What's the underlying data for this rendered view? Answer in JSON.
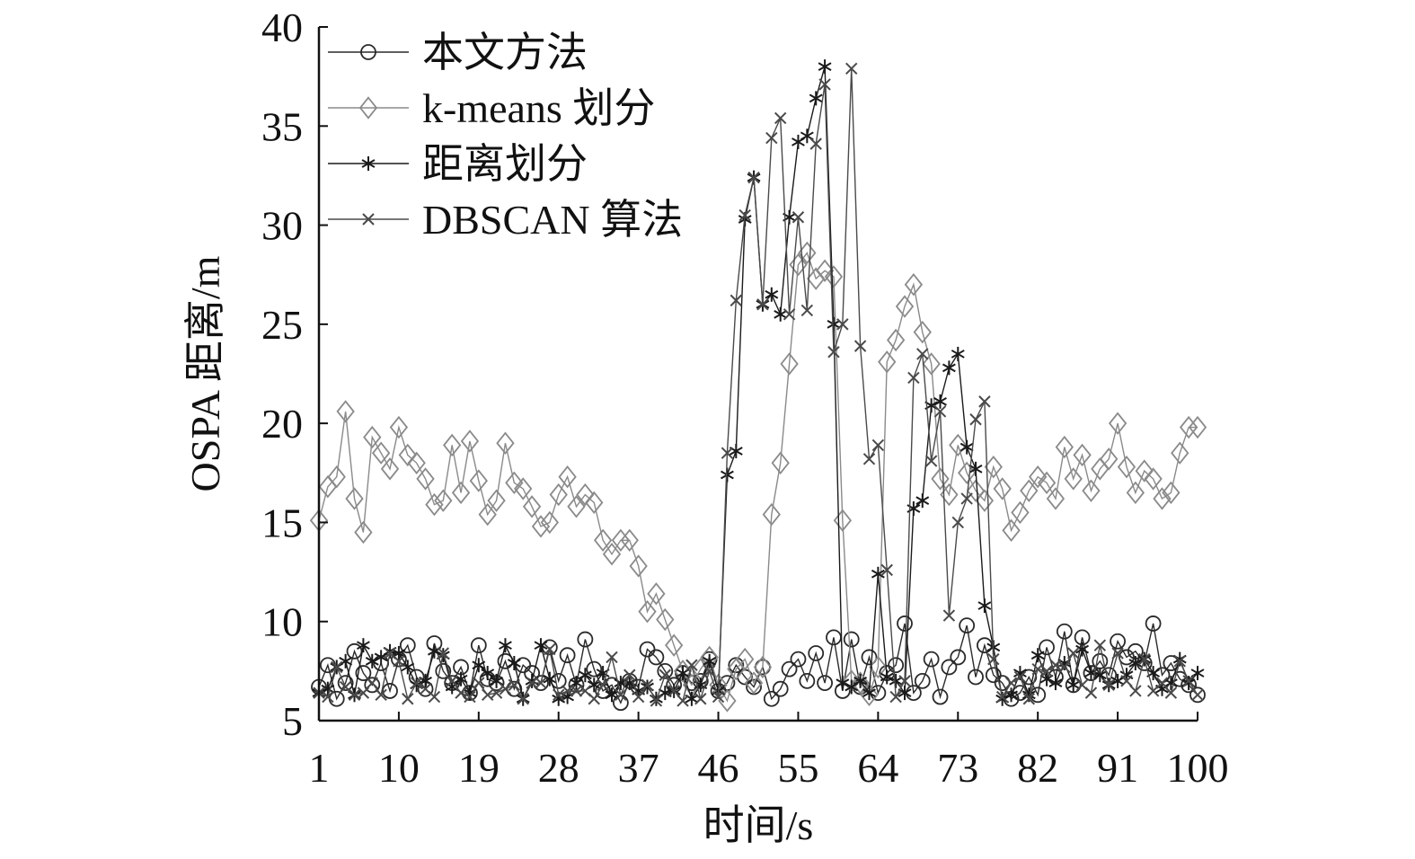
{
  "chart_data": {
    "type": "line",
    "xlabel": "时间/s",
    "ylabel": "OSPA 距离/m",
    "xlim": [
      1,
      100
    ],
    "ylim": [
      5,
      40
    ],
    "x_ticks": [
      1,
      10,
      19,
      28,
      37,
      46,
      55,
      64,
      73,
      82,
      91,
      100
    ],
    "y_ticks": [
      5,
      10,
      15,
      20,
      25,
      30,
      35,
      40
    ],
    "grid": false,
    "legend_position": "top-left",
    "series": [
      {
        "name": "本文方法",
        "marker": "circle",
        "color": "#2a2a2a",
        "values": [
          6.7,
          7.8,
          6.1,
          6.9,
          8.5,
          7.4,
          6.8,
          7.9,
          6.5,
          8.1,
          8.8,
          7.2,
          6.6,
          8.9,
          7.5,
          6.9,
          7.7,
          6.4,
          8.8,
          7.1,
          6.9,
          8.0,
          6.6,
          7.8,
          7.4,
          6.9,
          8.7,
          7.0,
          8.3,
          6.8,
          9.1,
          7.6,
          6.5,
          6.8,
          5.9,
          7.0,
          6.7,
          8.6,
          8.2,
          7.5,
          6.8,
          7.4,
          6.9,
          7.0,
          8.1,
          6.5,
          6.9,
          7.8,
          7.2,
          6.7,
          7.7,
          6.1,
          6.6,
          7.6,
          8.1,
          7.0,
          8.4,
          6.9,
          9.2,
          6.5,
          9.1,
          6.7,
          8.2,
          6.4,
          7.4,
          7.8,
          9.9,
          6.4,
          7.0,
          8.1,
          6.2,
          7.7,
          8.2,
          9.8,
          7.2,
          8.8,
          7.3,
          6.9,
          6.1,
          6.4,
          7.2,
          6.3,
          8.7,
          7.2,
          9.5,
          6.8,
          9.2,
          7.4,
          8.0,
          7.3,
          9.0,
          8.2,
          8.5,
          7.9,
          9.9,
          7.3,
          7.9,
          7.1,
          6.8,
          6.3
        ]
      },
      {
        "name": "k-means 划分",
        "marker": "diamond",
        "color": "#8a8a8a",
        "values": [
          15.1,
          16.8,
          17.3,
          20.6,
          16.2,
          14.5,
          19.3,
          18.5,
          17.7,
          19.8,
          18.4,
          18.0,
          17.2,
          15.9,
          16.1,
          18.9,
          16.5,
          19.1,
          17.1,
          15.4,
          16.1,
          19.0,
          17.0,
          16.7,
          15.8,
          14.8,
          15.0,
          16.4,
          17.3,
          15.8,
          16.4,
          16.0,
          14.1,
          13.4,
          14.1,
          14.1,
          12.8,
          10.5,
          11.4,
          10.1,
          8.8,
          7.5,
          6.8,
          7.6,
          8.2,
          6.8,
          6.0,
          7.6,
          8.1,
          6.9,
          7.7,
          15.4,
          18.0,
          23.0,
          28.0,
          28.6,
          27.3,
          27.7,
          27.4,
          15.1,
          7.0,
          6.9,
          6.3,
          7.7,
          23.1,
          24.2,
          25.9,
          27.0,
          24.6,
          23.0,
          17.2,
          16.4,
          18.9,
          17.5,
          16.6,
          16.1,
          17.8,
          16.7,
          14.6,
          15.5,
          16.6,
          17.3,
          17.0,
          16.2,
          18.8,
          17.2,
          18.4,
          16.6,
          17.7,
          18.2,
          20.0,
          17.8,
          16.5,
          17.6,
          17.2,
          16.2,
          16.5,
          18.5,
          19.8,
          19.8
        ]
      },
      {
        "name": "距离划分",
        "marker": "star",
        "color": "#1a1a1a",
        "values": [
          6.4,
          6.6,
          7.7,
          8.0,
          6.3,
          8.8,
          8.0,
          8.2,
          8.5,
          8.4,
          7.7,
          6.8,
          7.0,
          8.5,
          8.3,
          6.7,
          7.1,
          6.4,
          7.8,
          7.4,
          7.0,
          8.8,
          7.9,
          6.1,
          7.0,
          8.8,
          7.1,
          6.1,
          6.2,
          6.9,
          7.3,
          6.8,
          7.4,
          6.3,
          6.9,
          6.9,
          6.5,
          6.7,
          6.1,
          6.4,
          6.5,
          7.4,
          6.1,
          6.8,
          8.0,
          6.5,
          17.4,
          18.6,
          30.3,
          32.4,
          26.0,
          26.5,
          25.5,
          30.4,
          34.2,
          34.5,
          36.4,
          38.0,
          25.0,
          6.9,
          6.7,
          7.0,
          6.4,
          12.4,
          7.2,
          7.0,
          6.4,
          15.7,
          16.1,
          20.9,
          21.1,
          22.8,
          23.5,
          18.8,
          17.7,
          10.8,
          8.7,
          6.1,
          6.3,
          7.4,
          6.3,
          8.3,
          7.1,
          6.9,
          7.9,
          6.8,
          8.6,
          7.4,
          7.3,
          6.8,
          7.0,
          7.3,
          7.9,
          8.1,
          7.4,
          6.6,
          6.9,
          8.1,
          6.9,
          7.4
        ]
      },
      {
        "name": "DBSCAN 算法",
        "marker": "cross",
        "color": "#4a4a4a",
        "values": [
          6.4,
          6.2,
          7.7,
          6.7,
          6.3,
          6.4,
          6.9,
          6.3,
          8.4,
          8.0,
          6.1,
          6.9,
          6.6,
          6.2,
          8.4,
          7.0,
          6.4,
          6.2,
          6.9,
          6.3,
          6.4,
          6.6,
          6.8,
          6.1,
          6.9,
          6.9,
          8.6,
          6.3,
          6.5,
          6.5,
          6.5,
          6.1,
          6.8,
          8.2,
          6.3,
          7.3,
          6.2,
          6.8,
          6.0,
          7.3,
          6.5,
          6.0,
          7.8,
          6.1,
          7.5,
          6.2,
          18.5,
          26.2,
          30.5,
          32.4,
          26.0,
          34.4,
          35.4,
          25.5,
          30.4,
          25.7,
          34.1,
          37.1,
          23.6,
          25.0,
          37.9,
          23.9,
          18.2,
          18.9,
          12.6,
          6.2,
          7.0,
          22.3,
          23.5,
          18.1,
          20.6,
          10.3,
          15.0,
          16.2,
          20.2,
          21.1,
          8.1,
          6.2,
          6.9,
          7.2,
          6.1,
          7.6,
          7.5,
          7.8,
          7.7,
          8.4,
          6.8,
          6.4,
          8.8,
          6.8,
          8.4,
          7.0,
          6.5,
          8.1,
          6.5,
          6.9,
          6.4,
          8.0,
          7.0,
          6.3
        ]
      }
    ]
  }
}
